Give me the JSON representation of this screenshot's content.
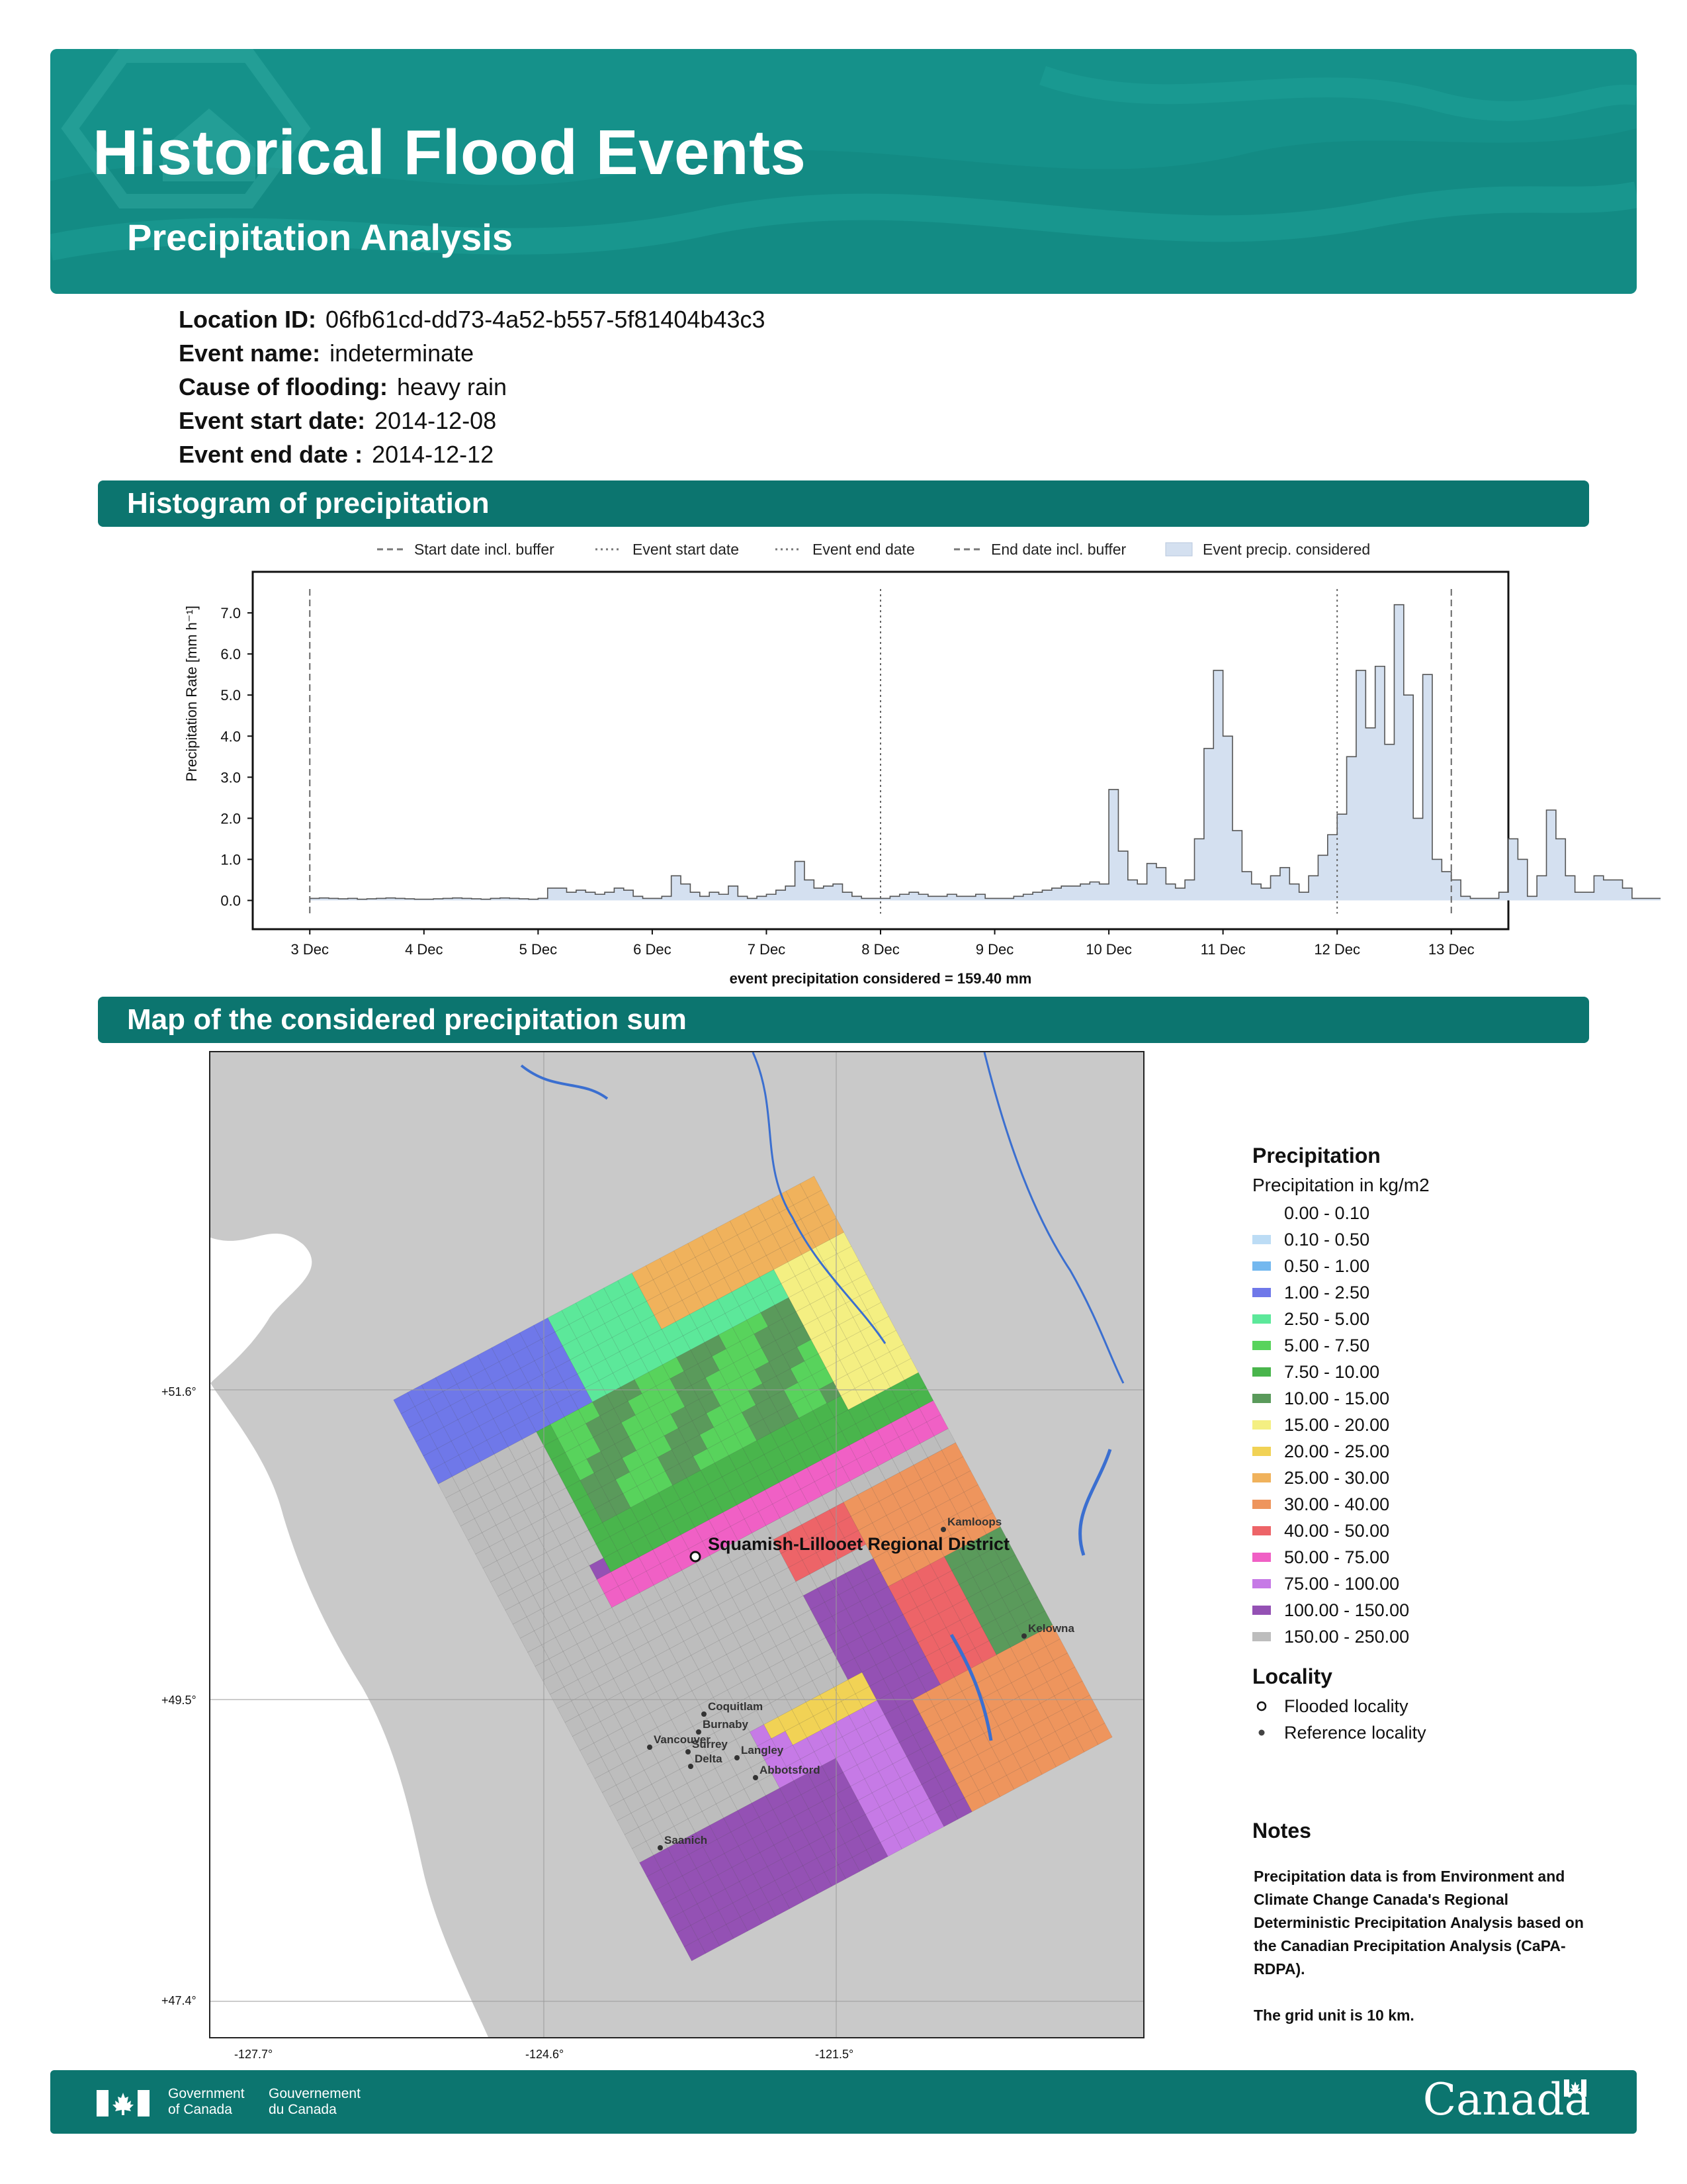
{
  "header": {
    "title": "Historical Flood Events",
    "subtitle": "Precipitation Analysis"
  },
  "event": {
    "location_label": "Location ID:",
    "location_value": "06fb61cd-dd73-4a52-b557-5f81404b43c3",
    "name_label": "Event name:",
    "name_value": "indeterminate",
    "cause_label": "Cause of flooding:",
    "cause_value": "heavy rain",
    "start_label": "Event start date:",
    "start_value": "2014-12-08",
    "end_label": "Event end date :",
    "end_value": "2014-12-12"
  },
  "sections": {
    "histogram": "Histogram of precipitation",
    "map": "Map of the considered precipitation sum"
  },
  "chart_data": {
    "type": "area",
    "ylabel": "Precipitation Rate [mm h⁻¹]",
    "xlabel": "event precipitation considered = 159.40 mm",
    "ylim": [
      -0.7,
      8.0
    ],
    "yticks": [
      "0.0",
      "1.0",
      "2.0",
      "3.0",
      "4.0",
      "5.0",
      "6.0",
      "7.0"
    ],
    "xticks": [
      "3 Dec",
      "4 Dec",
      "5 Dec",
      "6 Dec",
      "7 Dec",
      "8 Dec",
      "9 Dec",
      "10 Dec",
      "11 Dec",
      "12 Dec",
      "13 Dec"
    ],
    "x_range_days": [
      2.5,
      13.5
    ],
    "legend": [
      {
        "label": "Start date incl. buffer",
        "style": "dashed"
      },
      {
        "label": "Event start date",
        "style": "dotted"
      },
      {
        "label": "Event end date",
        "style": "dotted"
      },
      {
        "label": "End date incl. buffer",
        "style": "dashed"
      },
      {
        "label": "Event precip. considered",
        "style": "fill"
      }
    ],
    "vlines": [
      {
        "day": 3.0,
        "style": "dashed"
      },
      {
        "day": 8.0,
        "style": "dotted"
      },
      {
        "day": 12.0,
        "style": "dotted"
      },
      {
        "day": 13.0,
        "style": "dashed"
      }
    ],
    "series": [
      {
        "step_hours": 2,
        "start_day": 3.0,
        "values": [
          0.05,
          0.06,
          0.05,
          0.04,
          0.05,
          0.03,
          0.04,
          0.05,
          0.06,
          0.05,
          0.04,
          0.03,
          0.03,
          0.04,
          0.05,
          0.06,
          0.05,
          0.04,
          0.03,
          0.05,
          0.06,
          0.05,
          0.04,
          0.03,
          0.05,
          0.3,
          0.3,
          0.2,
          0.25,
          0.2,
          0.15,
          0.2,
          0.3,
          0.25,
          0.1,
          0.05,
          0.05,
          0.1,
          0.6,
          0.4,
          0.2,
          0.1,
          0.2,
          0.15,
          0.35,
          0.1,
          0.05,
          0.1,
          0.15,
          0.25,
          0.35,
          0.95,
          0.5,
          0.3,
          0.35,
          0.4,
          0.2,
          0.1,
          0.05,
          0.05,
          0.05,
          0.1,
          0.15,
          0.2,
          0.15,
          0.1,
          0.1,
          0.15,
          0.1,
          0.1,
          0.15,
          0.05,
          0.05,
          0.05,
          0.1,
          0.15,
          0.2,
          0.25,
          0.3,
          0.35,
          0.35,
          0.4,
          0.45,
          0.4,
          2.7,
          1.2,
          0.5,
          0.4,
          0.9,
          0.8,
          0.4,
          0.3,
          0.5,
          1.5,
          3.7,
          5.6,
          4.0,
          1.7,
          0.7,
          0.4,
          0.3,
          0.6,
          0.8,
          0.4,
          0.2,
          0.6,
          1.1,
          1.6,
          2.1,
          3.5,
          5.6,
          4.2,
          5.7,
          3.8,
          7.2,
          5.0,
          2.0,
          5.5,
          1.0,
          0.7,
          0.5,
          0.1,
          0.05,
          0.05,
          0.05,
          0.2,
          1.5,
          1.0,
          0.1,
          0.6,
          2.2,
          1.5,
          0.6,
          0.2,
          0.2,
          0.6,
          0.5,
          0.5,
          0.3,
          0.05,
          0.05,
          0.05
        ]
      }
    ],
    "total_mm": 159.4
  },
  "map": {
    "coords": {
      "lat_top": "+51.6°",
      "lat_mid": "+49.5°",
      "lat_bot": "+47.4°",
      "lon_left": "-127.7°",
      "lon_mid": "-124.6°",
      "lon_right": "-121.5°"
    },
    "flooded_locality": "Squamish-Lillooet Regional District",
    "reference_localities": [
      "Kamloops",
      "Kelowna",
      "Coquitlam",
      "Burnaby",
      "Vancouver",
      "Surrey",
      "Langley",
      "Delta",
      "Abbotsford",
      "Saanich"
    ],
    "legend_title": "Precipitation",
    "legend_subtitle": "Precipitation in kg/m2",
    "legend": [
      {
        "label": "0.00 - 0.10",
        "color": "#ffffff"
      },
      {
        "label": "0.10 - 0.50",
        "color": "#bcdcf5"
      },
      {
        "label": "0.50 - 1.00",
        "color": "#74b8ef"
      },
      {
        "label": "1.00 - 2.50",
        "color": "#6f78e9"
      },
      {
        "label": "2.50 - 5.00",
        "color": "#5ce89a"
      },
      {
        "label": "5.00 - 7.50",
        "color": "#58d35c"
      },
      {
        "label": "7.50 - 10.00",
        "color": "#49b54c"
      },
      {
        "label": "10.00 - 15.00",
        "color": "#5a9a5b"
      },
      {
        "label": "15.00 - 20.00",
        "color": "#f4ef82"
      },
      {
        "label": "20.00 - 25.00",
        "color": "#f1d255"
      },
      {
        "label": "25.00 - 30.00",
        "color": "#f0b25c"
      },
      {
        "label": "30.00 - 40.00",
        "color": "#ee955d"
      },
      {
        "label": "40.00 - 50.00",
        "color": "#ed6468"
      },
      {
        "label": "50.00 - 75.00",
        "color": "#f060c5"
      },
      {
        "label": "75.00 - 100.00",
        "color": "#c67ae6"
      },
      {
        "label": "100.00 - 150.00",
        "color": "#9451b4"
      },
      {
        "label": "150.00 - 250.00",
        "color": "#bdbdbd"
      }
    ],
    "locality_title": "Locality",
    "locality_flooded": "Flooded locality",
    "locality_reference": "Reference locality",
    "notes_title": "Notes",
    "notes_text": "Precipitation data is from Environment and Climate Change Canada's Regional Deterministic Precipitation Analysis based on the Canadian Precipitation Analysis (CaPA-RDPA).",
    "notes_grid": "The grid unit is 10 km."
  },
  "footer": {
    "gov_en_1": "Government",
    "gov_en_2": "of Canada",
    "gov_fr_1": "Gouvernement",
    "gov_fr_2": "du Canada",
    "wordmark": "Canada"
  }
}
